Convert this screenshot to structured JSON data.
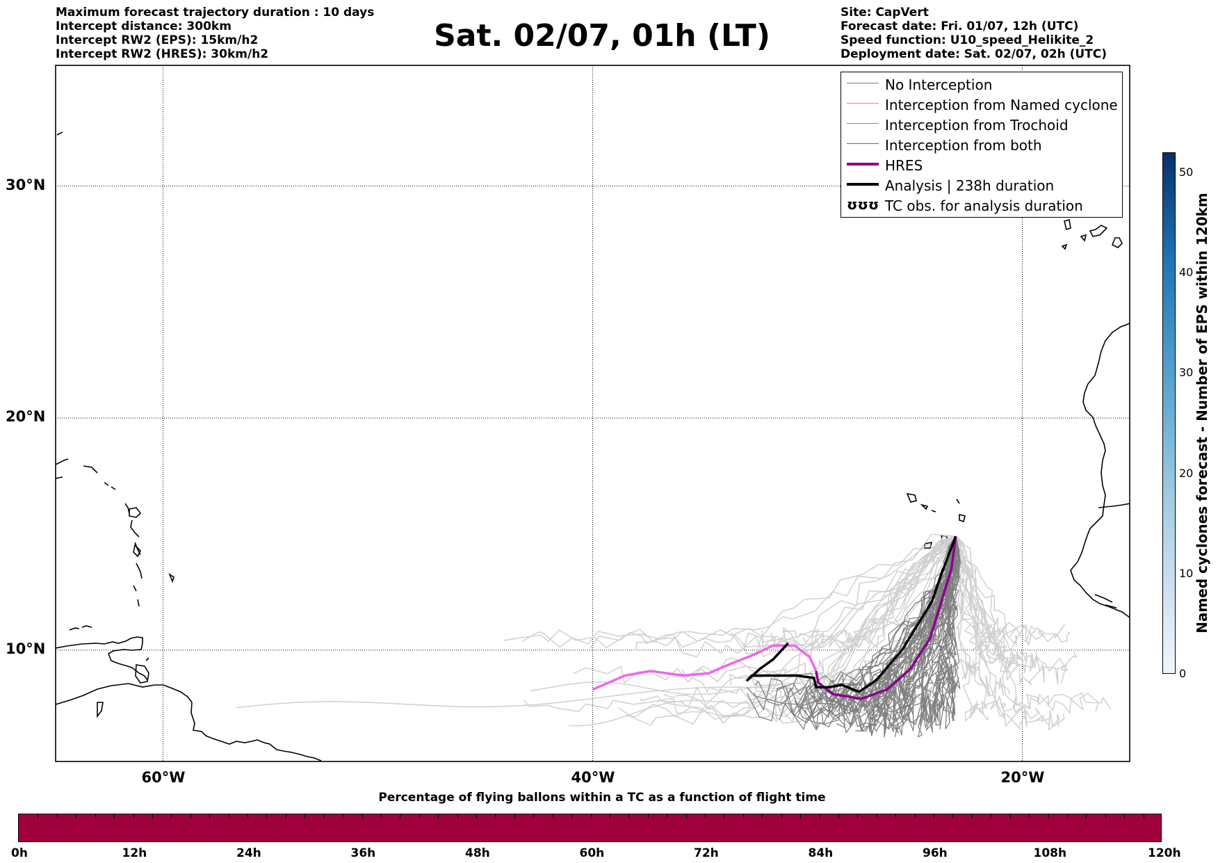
{
  "header_left": [
    "Maximum forecast trajectory duration : 10 days",
    "Intercept distance: 300km",
    "Intercept RW2 (EPS):  15km/h2",
    "Intercept RW2 (HRES): 30km/h2"
  ],
  "title": "Sat. 02/07, 01h (LT)",
  "header_right": [
    "Site: CapVert",
    "Forecast date: Fri. 01/07, 12h (UTC)",
    "Speed function: U10_speed_Helikite_2",
    "Deployment date: Sat. 02/07, 02h (UTC)"
  ],
  "map": {
    "lon_range": [
      -65,
      -15
    ],
    "lat_range": [
      5.2,
      35.2
    ],
    "lat_ticks": [
      {
        "value": 30,
        "label": "30°N"
      },
      {
        "value": 20,
        "label": "20°N"
      },
      {
        "value": 10,
        "label": "10°N"
      }
    ],
    "lon_ticks": [
      {
        "value": -60,
        "label": "60°W"
      },
      {
        "value": -40,
        "label": "40°W"
      },
      {
        "value": -20,
        "label": "20°W"
      }
    ],
    "grid": "dotted",
    "colors": {
      "no_interception": "#808080",
      "no_interception_light": "#d0d0d0",
      "hres": "#8b008b",
      "hres_light": "#ee66ee",
      "analysis": "#000000",
      "coast": "#000000"
    },
    "site": {
      "lon": -23.1,
      "lat": 14.9
    }
  },
  "legend": {
    "placement": "top-right",
    "items": [
      {
        "label": "No Interception",
        "color": "#808080",
        "width": 1.5,
        "kind": "line"
      },
      {
        "label": "Interception from Named cyclone",
        "color": "#ff7f50",
        "width": 1.5,
        "kind": "line"
      },
      {
        "label": "Interception from Trochoid",
        "color": "#9a8a3a",
        "width": 1.5,
        "kind": "line"
      },
      {
        "label": "Interception from both",
        "color": "#2e9a2e",
        "width": 1.5,
        "kind": "line"
      },
      {
        "label": "HRES",
        "color": "#8b008b",
        "width": 4,
        "kind": "line"
      },
      {
        "label": "Analysis | 238h duration",
        "color": "#000000",
        "width": 4,
        "kind": "line"
      },
      {
        "label": "TC obs. for analysis duration",
        "color": "#000000",
        "kind": "symbol",
        "symbol": "ʊʊʊ"
      }
    ]
  },
  "colorbar": {
    "label": "Named cyclones forecast - Number of EPS within 120km",
    "range": [
      0,
      52
    ],
    "ticks": [
      "0",
      "10",
      "20",
      "30",
      "40",
      "50"
    ],
    "tick_values": [
      0,
      10,
      20,
      30,
      40,
      50
    ]
  },
  "timebar": {
    "title": "Percentage of flying ballons within a TC as a function of flight time",
    "fill_color": "#a0003c",
    "ticks": [
      "0h",
      "12h",
      "24h",
      "36h",
      "48h",
      "60h",
      "72h",
      "84h",
      "96h",
      "108h",
      "120h"
    ]
  },
  "trajectories": {
    "hres": [
      [
        -40,
        8.3
      ],
      [
        -38.5,
        8.9
      ],
      [
        -37.3,
        9.1
      ],
      [
        -35.8,
        8.9
      ],
      [
        -34.6,
        9.0
      ],
      [
        -33.6,
        9.4
      ],
      [
        -32.5,
        9.8
      ],
      [
        -31.6,
        10.2
      ],
      [
        -30.6,
        10.2
      ],
      [
        -29.9,
        9.7
      ],
      [
        -29.6,
        9.1
      ],
      [
        -29.5,
        8.6
      ],
      [
        -28.8,
        8.1
      ],
      [
        -27.5,
        7.9
      ],
      [
        -26.3,
        8.3
      ],
      [
        -25.2,
        9.2
      ],
      [
        -24.3,
        10.5
      ],
      [
        -23.8,
        12.0
      ],
      [
        -23.3,
        13.5
      ],
      [
        -23.1,
        14.9
      ]
    ],
    "analysis": [
      [
        -30.9,
        10.3
      ],
      [
        -31.6,
        9.6
      ],
      [
        -32.2,
        9.2
      ],
      [
        -32.8,
        8.7
      ],
      [
        -32.6,
        8.9
      ],
      [
        -31.5,
        8.9
      ],
      [
        -30.5,
        8.9
      ],
      [
        -29.7,
        8.8
      ],
      [
        -29.6,
        8.4
      ],
      [
        -29.0,
        8.4
      ],
      [
        -28.4,
        8.5
      ],
      [
        -27.6,
        8.2
      ],
      [
        -26.8,
        8.7
      ],
      [
        -25.6,
        10.0
      ],
      [
        -24.8,
        11.2
      ],
      [
        -24.2,
        12.1
      ],
      [
        -23.8,
        13.2
      ],
      [
        -23.1,
        14.9
      ]
    ]
  }
}
